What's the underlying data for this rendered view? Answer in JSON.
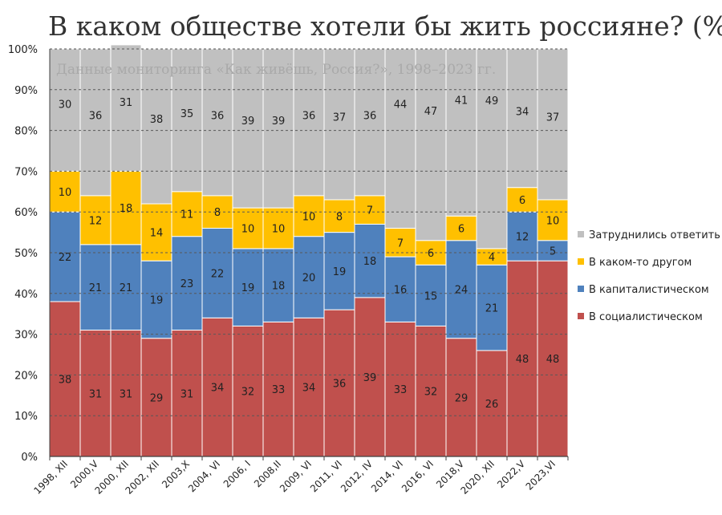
{
  "chart_data": {
    "type": "bar",
    "stacked": true,
    "title": "В каком обществе хотели бы жить россияне? (%)",
    "subtitle": "Данные мониторинга «Как живёшь, Россия?», 1998–2023 гг.",
    "categories": [
      "1998, XII",
      "2000,V",
      "2000, XII",
      "2002, XII",
      "2003,X",
      "2004, VI",
      "2006, I",
      "2008,II",
      "2009, VI",
      "2011, VI",
      "2012, IV",
      "2014, VI",
      "2016, VI",
      "2018,V",
      "2020, XII",
      "2022,V",
      "2023,VI"
    ],
    "series": [
      {
        "name": "В социалистическом",
        "color": "#c0504d",
        "values": [
          38,
          31,
          31,
          29,
          31,
          34,
          32,
          33,
          34,
          36,
          39,
          33,
          32,
          29,
          26,
          48,
          48
        ]
      },
      {
        "name": "В капиталистическом",
        "color": "#4f81bd",
        "values": [
          22,
          21,
          21,
          19,
          23,
          22,
          19,
          18,
          20,
          19,
          18,
          16,
          15,
          24,
          21,
          12,
          5
        ]
      },
      {
        "name": "В каком-то другом",
        "color": "#ffc000",
        "values": [
          10,
          12,
          18,
          14,
          11,
          8,
          10,
          10,
          10,
          8,
          7,
          7,
          6,
          6,
          4,
          6,
          10
        ]
      },
      {
        "name": "Затруднились ответить",
        "color": "#c0c0c0",
        "values": [
          30,
          36,
          31,
          38,
          35,
          36,
          39,
          39,
          36,
          37,
          36,
          44,
          47,
          41,
          49,
          34,
          37
        ]
      }
    ],
    "ylim": [
      0,
      100
    ],
    "yticks": [
      "0%",
      "10%",
      "20%",
      "30%",
      "40%",
      "50%",
      "60%",
      "70%",
      "80%",
      "90%",
      "100%"
    ],
    "grid": true,
    "legend_position": "right",
    "legend_order": [
      "Затруднились ответить",
      "В каком-то другом",
      "В капиталистическом",
      "В социалистическом"
    ]
  }
}
